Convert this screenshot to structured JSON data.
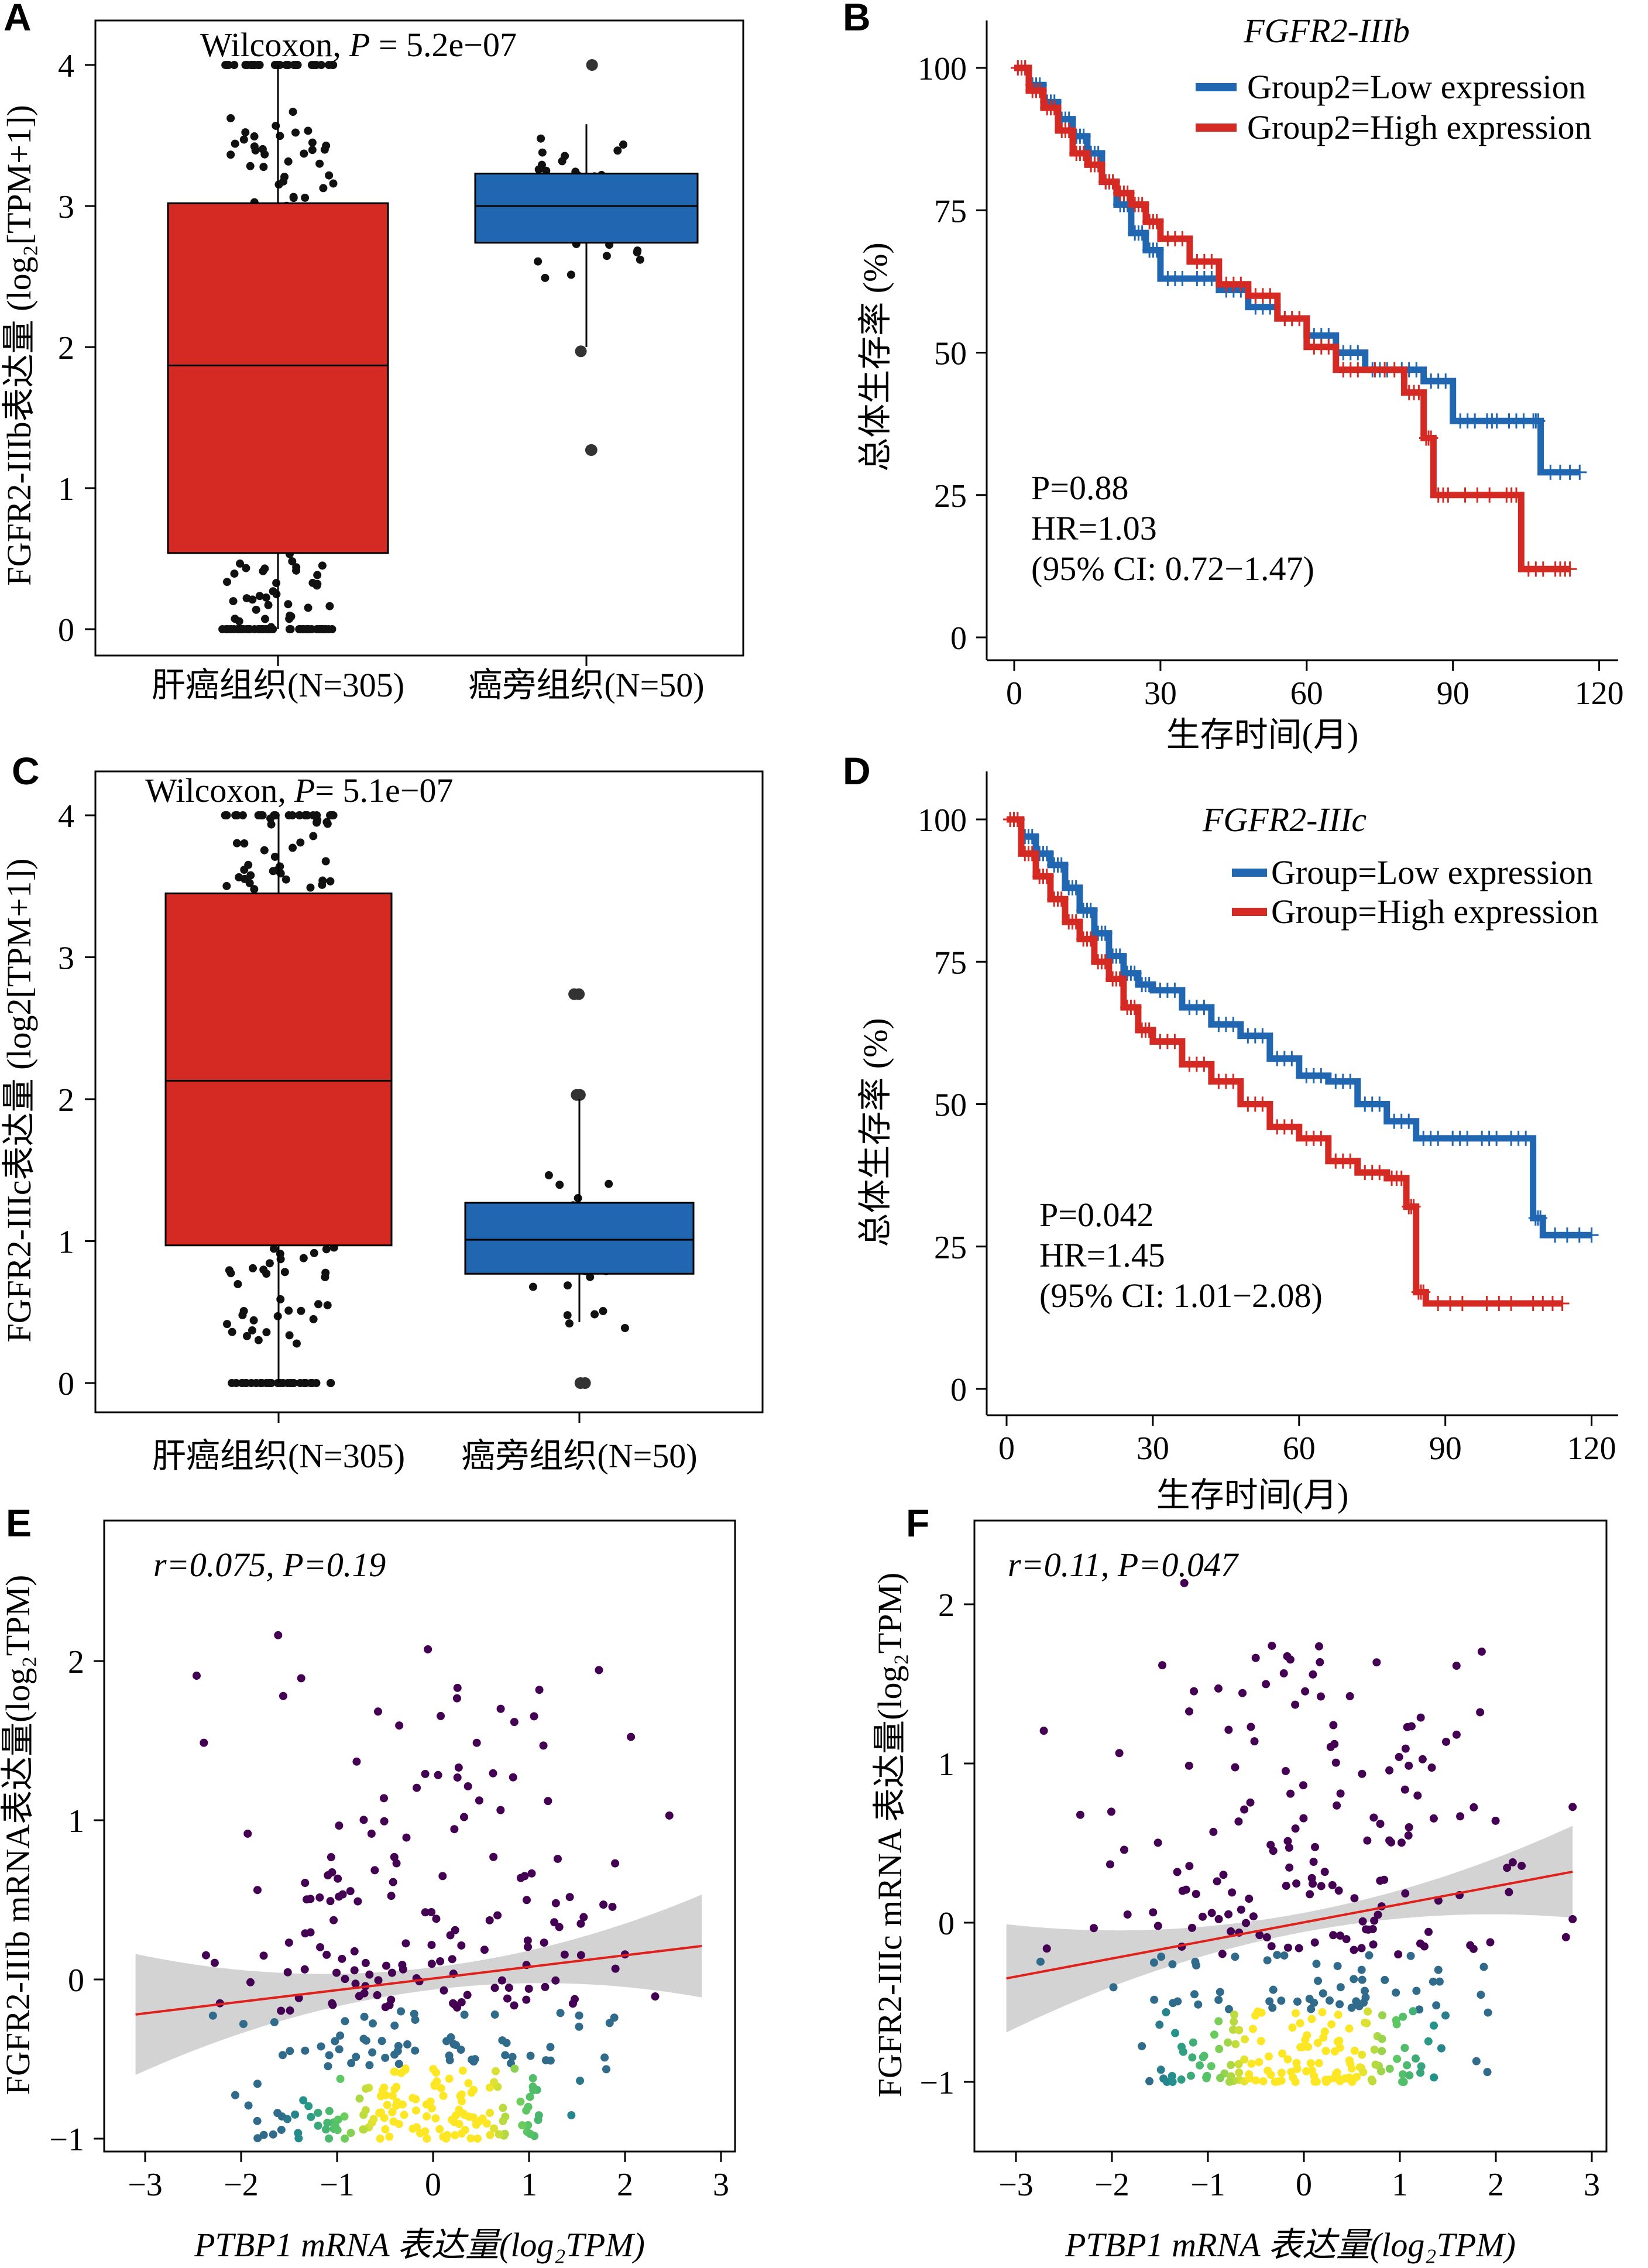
{
  "colors": {
    "red": "#d42a23",
    "blue": "#2166b0",
    "pointdark": "#111111",
    "ci": "#c8c8c8",
    "fit": "#e0201b"
  },
  "panels": {
    "A": {
      "label": "A",
      "stat_prefix": "Wilcoxon,",
      "stat_p": "P",
      "stat_rest": " = 5.2e−07",
      "ylabel": "FGFR2-IIIb表达量 (log₂[TPM+1])",
      "cat1": "肝癌组织(N=305)",
      "cat2": "癌旁组织(N=50)"
    },
    "B": {
      "label": "B",
      "title": "FGFR2-IIIb",
      "legend1": "Group2=Low expression",
      "legend2": "Group2=High expression",
      "stat1": "P=0.88",
      "stat2": "HR=1.03",
      "stat3": "(95% CI: 0.72−1.47)",
      "ylabel": "总体生存率 (%)",
      "xlabel": "生存时间(月)"
    },
    "C": {
      "label": "C",
      "stat_prefix": "Wilcoxon,",
      "stat_p": "P",
      "stat_rest": "= 5.1e−07",
      "ylabel": "FGFR2-IIIc表达量 (log2[TPM+1])",
      "cat1": "肝癌组织(N=305)",
      "cat2": "癌旁组织(N=50)"
    },
    "D": {
      "label": "D",
      "title": "FGFR2-IIIc",
      "legend1": "Group=Low expression",
      "legend2": "Group=High expression",
      "stat1": "P=0.042",
      "stat2": "HR=1.45",
      "stat3": "(95% CI: 1.01−2.08)",
      "ylabel": "总体生存率 (%)",
      "xlabel": "生存时间(月)"
    },
    "E": {
      "label": "E",
      "stat": "r=0.075, P=0.19",
      "ylabel": "FGFR2-IIIb mRNA表达量(log₂TPM)",
      "xlabel": "PTBP1 mRNA 表达量(log₂TPM)"
    },
    "F": {
      "label": "F",
      "stat": "r=0.11, P=0.047",
      "ylabel": "FGFR2-IIIc mRNA 表达量(log₂TPM)",
      "xlabel": "PTBP1 mRNA 表达量(log₂TPM)"
    }
  },
  "chart_data": [
    {
      "panel": "A",
      "type": "box",
      "categories": [
        "肝癌组织(N=305)",
        "癌旁组织(N=50)"
      ],
      "ylim": [
        -0.1,
        4.15
      ],
      "yticks": [
        0,
        1,
        2,
        3,
        4
      ],
      "boxes": [
        {
          "q1": 0.54,
          "median": 1.87,
          "q3": 3.02,
          "whisker_low": 0,
          "whisker_high": 4,
          "color": "#d42a23"
        },
        {
          "q1": 2.74,
          "median": 3.0,
          "q3": 3.23,
          "whisker_low": 2.0,
          "whisker_high": 3.58,
          "color": "#2166b0",
          "outliers": [
            4.0,
            1.27,
            1.27,
            1.97
          ]
        }
      ]
    },
    {
      "panel": "B",
      "type": "survival",
      "xlim": [
        -5,
        124
      ],
      "ylim": [
        -3,
        104
      ],
      "xticks": [
        0,
        30,
        60,
        90,
        120
      ],
      "yticks": [
        0,
        25,
        50,
        75,
        100
      ],
      "series": [
        {
          "name": "Group2=Low expression",
          "color": "#2166b0",
          "x": [
            0,
            3,
            6,
            9,
            12,
            15,
            18,
            21,
            24,
            27,
            30,
            36,
            42,
            48,
            54,
            60,
            66,
            72,
            78,
            84,
            90,
            96,
            100,
            106,
            108,
            116
          ],
          "y": [
            100,
            97,
            94,
            91,
            88,
            85,
            80,
            76,
            71,
            68,
            63,
            63,
            61,
            58,
            56,
            53,
            50,
            47,
            47,
            45,
            38,
            38,
            38,
            38,
            29,
            29
          ]
        },
        {
          "name": "Group2=High expression",
          "color": "#d42a23",
          "x": [
            0,
            3,
            6,
            9,
            12,
            15,
            18,
            21,
            24,
            27,
            30,
            36,
            42,
            48,
            54,
            60,
            66,
            72,
            80,
            84,
            86,
            90,
            100,
            104,
            110,
            114
          ],
          "y": [
            100,
            96,
            93,
            89,
            85,
            83,
            80,
            78,
            76,
            73,
            70,
            66,
            62,
            60,
            56,
            51,
            47,
            47,
            43,
            35,
            25,
            25,
            25,
            12,
            12,
            12
          ]
        }
      ]
    },
    {
      "panel": "C",
      "type": "box",
      "categories": [
        "肝癌组织(N=305)",
        "癌旁组织(N=50)"
      ],
      "ylim": [
        -0.1,
        4.15
      ],
      "yticks": [
        0,
        1,
        2,
        3,
        4
      ],
      "boxes": [
        {
          "q1": 0.97,
          "median": 2.13,
          "q3": 3.45,
          "whisker_low": 0,
          "whisker_high": 4,
          "color": "#d42a23"
        },
        {
          "q1": 0.77,
          "median": 1.01,
          "q3": 1.27,
          "whisker_low": 0.43,
          "whisker_high": 2.0,
          "color": "#2166b0",
          "outliers": [
            2.74,
            2.74,
            2.03,
            2.03,
            0.0,
            0.0
          ]
        }
      ]
    },
    {
      "panel": "D",
      "type": "survival",
      "xlim": [
        -5,
        124
      ],
      "ylim": [
        -3,
        104
      ],
      "xticks": [
        0,
        30,
        60,
        90,
        120
      ],
      "yticks": [
        0,
        25,
        50,
        75,
        100
      ],
      "series": [
        {
          "name": "Group=Low expression",
          "color": "#2166b0",
          "x": [
            0,
            3,
            6,
            9,
            12,
            15,
            18,
            21,
            24,
            27,
            30,
            36,
            42,
            48,
            54,
            60,
            66,
            72,
            78,
            84,
            90,
            96,
            102,
            108,
            110,
            120
          ],
          "y": [
            100,
            97,
            94,
            92,
            88,
            84,
            80,
            76,
            73,
            71,
            70,
            67,
            64,
            62,
            58,
            55,
            54,
            50,
            47,
            44,
            44,
            44,
            44,
            30,
            27,
            27
          ]
        },
        {
          "name": "Group=High expression",
          "color": "#d42a23",
          "x": [
            0,
            3,
            6,
            9,
            12,
            15,
            18,
            21,
            24,
            27,
            30,
            36,
            42,
            48,
            54,
            60,
            66,
            72,
            78,
            82,
            84,
            86,
            96,
            106,
            114
          ],
          "y": [
            100,
            94,
            90,
            86,
            82,
            79,
            75,
            72,
            67,
            63,
            61,
            57,
            54,
            50,
            46,
            44,
            40,
            38,
            37,
            32,
            17,
            15,
            15,
            15,
            15
          ]
        }
      ]
    },
    {
      "panel": "E",
      "type": "scatter",
      "xlim": [
        -3.3,
        3.0
      ],
      "ylim": [
        -1.15,
        2.65
      ],
      "xticks": [
        -3,
        -2,
        -1,
        0,
        1,
        2,
        3
      ],
      "yticks": [
        -1,
        0,
        1,
        2
      ],
      "fit": {
        "x": [
          -3.1,
          2.8
        ],
        "y": [
          -0.22,
          0.21
        ]
      },
      "ci_halfwidth_ends": 0.38,
      "ci_halfwidth_mid": 0.07
    },
    {
      "panel": "F",
      "type": "scatter",
      "xlim": [
        -3.3,
        3.0
      ],
      "ylim": [
        -1.15,
        2.3
      ],
      "xticks": [
        -3,
        -2,
        -1,
        0,
        1,
        2,
        3
      ],
      "yticks": [
        -1,
        0,
        1,
        2
      ],
      "fit": {
        "x": [
          -3.1,
          2.8
        ],
        "y": [
          -0.35,
          0.32
        ]
      },
      "ci_halfwidth_ends": 0.34,
      "ci_halfwidth_mid": 0.06
    }
  ]
}
